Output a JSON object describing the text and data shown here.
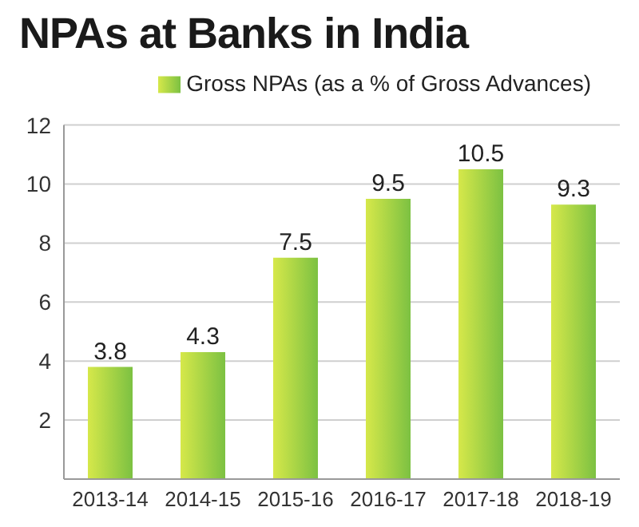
{
  "chart_data": {
    "type": "bar",
    "title": "NPAs at Banks in India",
    "categories": [
      "2013-14",
      "2014-15",
      "2015-16",
      "2016-17",
      "2017-18",
      "2018-19"
    ],
    "series": [
      {
        "name": "Gross NPAs (as a % of Gross Advances)",
        "color": "#7cc142",
        "values": [
          3.8,
          4.3,
          7.5,
          9.5,
          10.5,
          9.3
        ]
      }
    ],
    "ylim": [
      0,
      12
    ],
    "yticks": [
      2,
      4,
      6,
      8,
      10,
      12
    ],
    "grid": "y",
    "legend": "top right",
    "data_labels": true
  }
}
